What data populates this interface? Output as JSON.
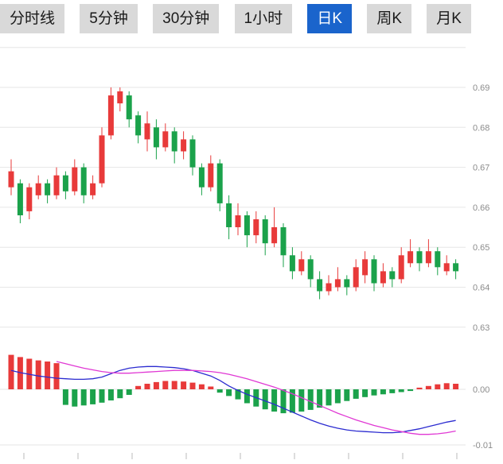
{
  "tabs": {
    "items": [
      {
        "label": "分时线",
        "active": false
      },
      {
        "label": "5分钟",
        "active": false
      },
      {
        "label": "30分钟",
        "active": false
      },
      {
        "label": "1小时",
        "active": false
      },
      {
        "label": "日K",
        "active": true
      },
      {
        "label": "周K",
        "active": false
      },
      {
        "label": "月K",
        "active": false
      }
    ]
  },
  "colors": {
    "up": "#e83a3a",
    "down": "#1ba24b",
    "tab_bg": "#d9d9d9",
    "tab_active_bg": "#1a64cc",
    "dif_line": "#2b2bd0",
    "dea_line": "#e038d4",
    "grid": "#e6e6e6",
    "axis_label": "#8c8c8c",
    "bottom_tick": "#bbbbbb"
  },
  "chart_data": {
    "type": "candlestick+macd",
    "title": "",
    "legend": [],
    "price_axis": {
      "side": "right",
      "ticks": [
        0.69,
        0.68,
        0.67,
        0.66,
        0.65,
        0.64,
        0.63
      ],
      "min": 0.628,
      "max": 0.7,
      "grid": true
    },
    "macd_axis": {
      "ticks": [
        {
          "value": 0,
          "label": "0.00"
        },
        {
          "value": -0.01,
          "label": "-0.01"
        }
      ]
    },
    "x_axis": {
      "labels": [],
      "tick_count": 9
    },
    "candle_fields": [
      "open",
      "close",
      "high",
      "low"
    ],
    "candles": [
      [
        0.665,
        0.669,
        0.672,
        0.663
      ],
      [
        0.666,
        0.658,
        0.667,
        0.656
      ],
      [
        0.659,
        0.665,
        0.666,
        0.657
      ],
      [
        0.663,
        0.666,
        0.668,
        0.662
      ],
      [
        0.666,
        0.663,
        0.667,
        0.661
      ],
      [
        0.663,
        0.668,
        0.67,
        0.662
      ],
      [
        0.668,
        0.664,
        0.669,
        0.662
      ],
      [
        0.664,
        0.67,
        0.672,
        0.663
      ],
      [
        0.67,
        0.663,
        0.671,
        0.661
      ],
      [
        0.663,
        0.666,
        0.668,
        0.662
      ],
      [
        0.666,
        0.678,
        0.68,
        0.665
      ],
      [
        0.678,
        0.688,
        0.69,
        0.677
      ],
      [
        0.686,
        0.689,
        0.69,
        0.684
      ],
      [
        0.688,
        0.682,
        0.689,
        0.68
      ],
      [
        0.683,
        0.678,
        0.684,
        0.676
      ],
      [
        0.677,
        0.681,
        0.684,
        0.674
      ],
      [
        0.68,
        0.675,
        0.682,
        0.672
      ],
      [
        0.675,
        0.679,
        0.681,
        0.674
      ],
      [
        0.679,
        0.674,
        0.68,
        0.671
      ],
      [
        0.674,
        0.677,
        0.679,
        0.672
      ],
      [
        0.677,
        0.67,
        0.678,
        0.668
      ],
      [
        0.67,
        0.665,
        0.671,
        0.663
      ],
      [
        0.665,
        0.671,
        0.673,
        0.664
      ],
      [
        0.671,
        0.661,
        0.672,
        0.659
      ],
      [
        0.661,
        0.655,
        0.663,
        0.652
      ],
      [
        0.655,
        0.658,
        0.661,
        0.653
      ],
      [
        0.658,
        0.653,
        0.659,
        0.65
      ],
      [
        0.653,
        0.657,
        0.659,
        0.651
      ],
      [
        0.657,
        0.651,
        0.658,
        0.648
      ],
      [
        0.651,
        0.655,
        0.66,
        0.65
      ],
      [
        0.655,
        0.648,
        0.656,
        0.645
      ],
      [
        0.648,
        0.644,
        0.65,
        0.642
      ],
      [
        0.644,
        0.647,
        0.649,
        0.643
      ],
      [
        0.647,
        0.642,
        0.648,
        0.64
      ],
      [
        0.642,
        0.639,
        0.644,
        0.637
      ],
      [
        0.639,
        0.641,
        0.643,
        0.638
      ],
      [
        0.64,
        0.642,
        0.645,
        0.639
      ],
      [
        0.642,
        0.64,
        0.643,
        0.638
      ],
      [
        0.64,
        0.645,
        0.647,
        0.639
      ],
      [
        0.643,
        0.647,
        0.649,
        0.641
      ],
      [
        0.647,
        0.641,
        0.648,
        0.639
      ],
      [
        0.641,
        0.644,
        0.646,
        0.64
      ],
      [
        0.644,
        0.642,
        0.645,
        0.64
      ],
      [
        0.642,
        0.648,
        0.65,
        0.641
      ],
      [
        0.646,
        0.649,
        0.652,
        0.645
      ],
      [
        0.649,
        0.646,
        0.65,
        0.644
      ],
      [
        0.646,
        0.649,
        0.652,
        0.645
      ],
      [
        0.649,
        0.645,
        0.65,
        0.643
      ],
      [
        0.644,
        0.646,
        0.648,
        0.643
      ],
      [
        0.646,
        0.644,
        0.647,
        0.642
      ]
    ],
    "macd": [
      0.0062,
      0.0058,
      0.0055,
      0.0052,
      0.005,
      0.0047,
      -0.0028,
      -0.0031,
      -0.0029,
      -0.0027,
      -0.0024,
      -0.002,
      -0.0016,
      -0.001,
      0.0006,
      0.001,
      0.0013,
      0.0015,
      0.0015,
      0.0014,
      0.0012,
      0.0009,
      0.0005,
      -0.0006,
      -0.0012,
      -0.0018,
      -0.0025,
      -0.0031,
      -0.0036,
      -0.004,
      -0.0043,
      -0.0042,
      -0.004,
      -0.0037,
      -0.0033,
      -0.0029,
      -0.0025,
      -0.0021,
      -0.0017,
      -0.0014,
      -0.0011,
      -0.0009,
      -0.0007,
      -0.0005,
      -0.0003,
      0.0003,
      0.0006,
      0.0009,
      0.0011,
      0.001
    ],
    "dif": [
      0.0034,
      0.003,
      0.0027,
      0.0024,
      0.0022,
      0.002,
      0.0019,
      0.0018,
      0.0018,
      0.0019,
      0.0022,
      0.0028,
      0.0034,
      0.0038,
      0.004,
      0.0041,
      0.0041,
      0.004,
      0.0039,
      0.0037,
      0.0034,
      0.0029,
      0.0024,
      0.0016,
      0.0006,
      -0.0002,
      -0.0009,
      -0.0015,
      -0.0021,
      -0.0027,
      -0.0034,
      -0.0041,
      -0.0048,
      -0.0055,
      -0.0061,
      -0.0066,
      -0.007,
      -0.0073,
      -0.0075,
      -0.0076,
      -0.0077,
      -0.0078,
      -0.0078,
      -0.0077,
      -0.0074,
      -0.0071,
      -0.0067,
      -0.0063,
      -0.0059,
      -0.0056
    ],
    "dea": [
      null,
      null,
      null,
      null,
      null,
      0.005,
      0.0046,
      0.0042,
      0.0038,
      0.0035,
      0.0032,
      0.003,
      0.0029,
      0.0029,
      0.003,
      0.0031,
      0.0032,
      0.0033,
      0.0034,
      0.0034,
      0.0034,
      0.0033,
      0.0032,
      0.003,
      0.0027,
      0.0023,
      0.0019,
      0.0014,
      0.0009,
      0.0004,
      -0.0002,
      -0.0008,
      -0.0015,
      -0.0022,
      -0.0029,
      -0.0036,
      -0.0043,
      -0.0049,
      -0.0055,
      -0.006,
      -0.0065,
      -0.0069,
      -0.0073,
      -0.0076,
      -0.0079,
      -0.0081,
      -0.0081,
      -0.008,
      -0.0078,
      -0.0075
    ]
  }
}
